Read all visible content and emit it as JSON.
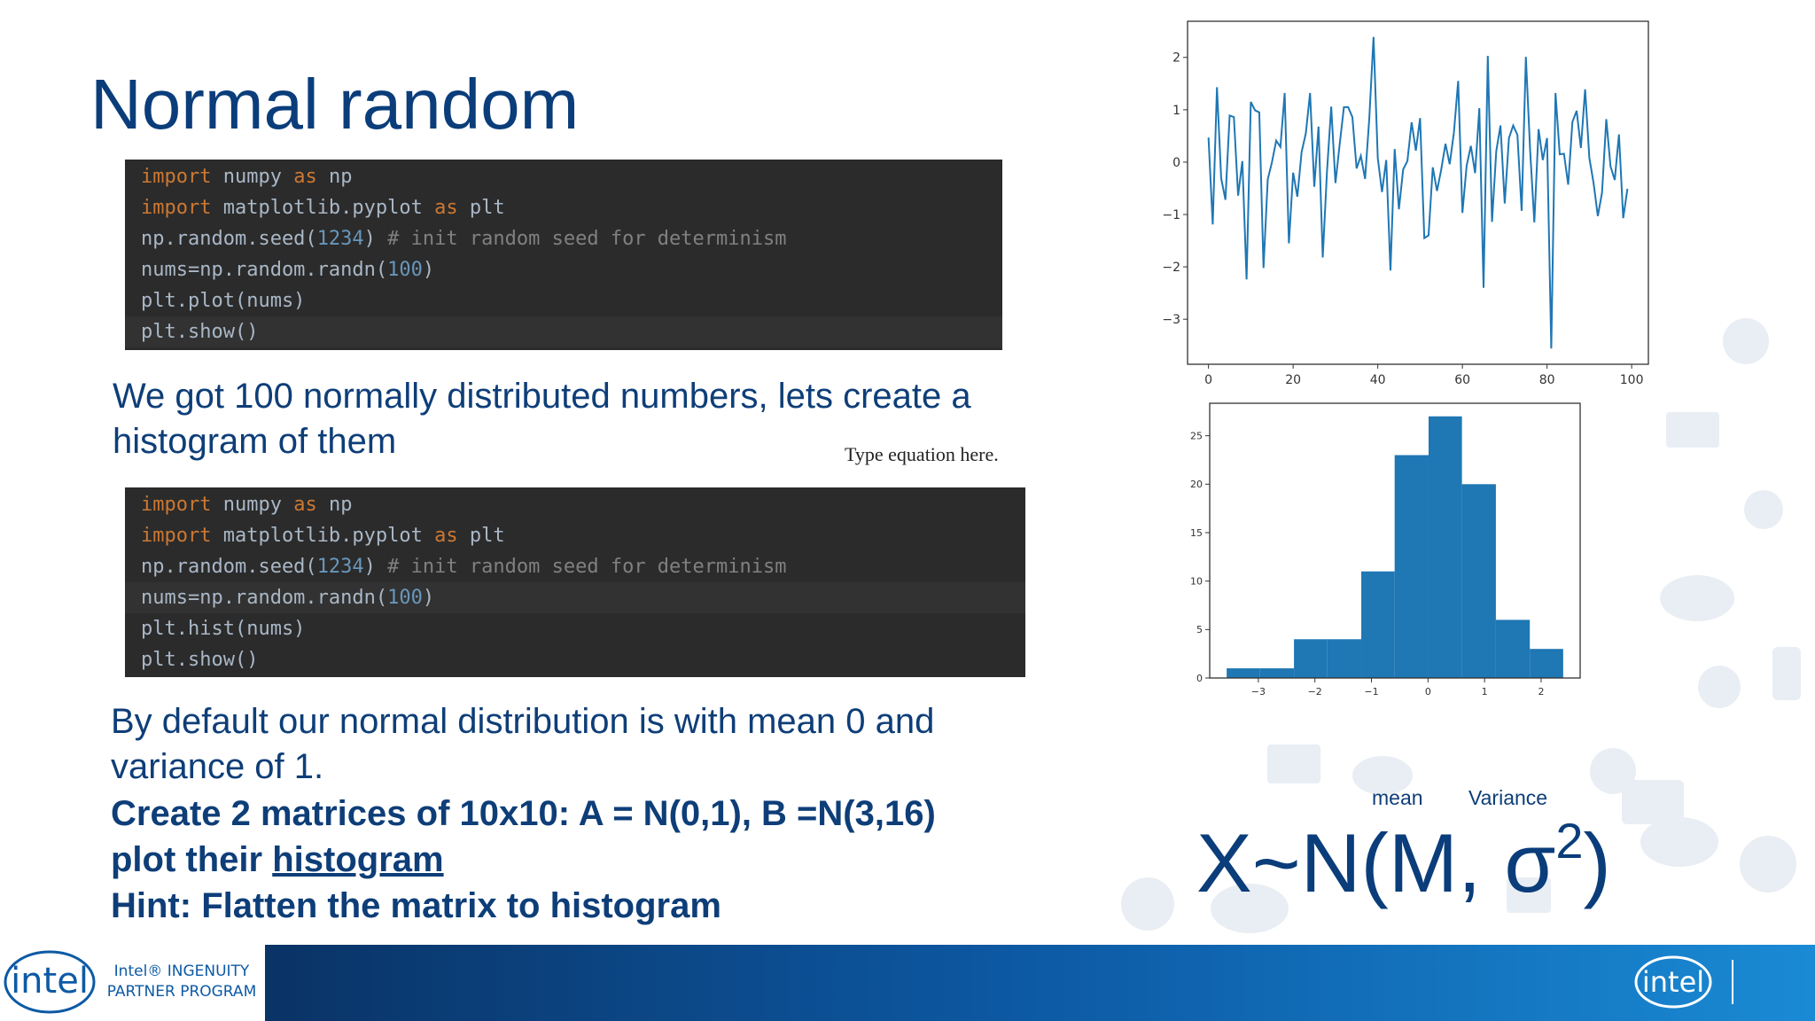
{
  "slide": {
    "title": "Normal random",
    "code1": [
      "import numpy as np",
      "import matplotlib.pyplot as plt",
      "np.random.seed(1234) # init random seed for determinism",
      "nums=np.random.randn(100)",
      "plt.plot(nums)",
      "plt.show()"
    ],
    "para1": [
      "We got 100 normally distributed numbers, lets create a",
      "histogram of them"
    ],
    "equation_placeholder": "Type equation here.",
    "code2": [
      "import numpy as np",
      "import matplotlib.pyplot as plt",
      "np.random.seed(1234) # init random seed for determinism",
      "nums=np.random.randn(100)",
      "plt.hist(nums)",
      "plt.show()"
    ],
    "para2": [
      "By default our normal distribution is with mean 0 and",
      "variance of 1."
    ],
    "task": {
      "line1": "Create 2 matrices of 10x10: A = N(0,1), B =N(3,16)",
      "line2_prefix": "plot their ",
      "line2_link": "histogram",
      "line3": "Hint: Flatten the matrix to histogram"
    },
    "formula": {
      "mean_label": "mean",
      "variance_label": "Variance",
      "main": "X~N(M, σ",
      "exponent": "2",
      "close": ")"
    },
    "footer": {
      "logo_left": "intel",
      "program_line1": "Intel® INGENUITY",
      "program_line2": "PARTNER PROGRAM",
      "logo_right": "intel"
    }
  },
  "chart_data": [
    {
      "type": "line",
      "color": "#1f77b4",
      "x": [
        0,
        1,
        2,
        3,
        4,
        5,
        6,
        7,
        8,
        9,
        10,
        11,
        12,
        13,
        14,
        15,
        16,
        17,
        18,
        19,
        20,
        21,
        22,
        23,
        24,
        25,
        26,
        27,
        28,
        29,
        30,
        31,
        32,
        33,
        34,
        35,
        36,
        37,
        38,
        39,
        40,
        41,
        42,
        43,
        44,
        45,
        46,
        47,
        48,
        49,
        50,
        51,
        52,
        53,
        54,
        55,
        56,
        57,
        58,
        59,
        60,
        61,
        62,
        63,
        64,
        65,
        66,
        67,
        68,
        69,
        70,
        71,
        72,
        73,
        74,
        75,
        76,
        77,
        78,
        79,
        80,
        81,
        82,
        83,
        84,
        85,
        86,
        87,
        88,
        89,
        90,
        91,
        92,
        93,
        94,
        95,
        96,
        97,
        98,
        99
      ],
      "values": [
        0.47,
        -1.19,
        1.43,
        -0.31,
        -0.72,
        0.89,
        0.86,
        -0.64,
        0.02,
        -2.24,
        1.15,
        0.99,
        0.95,
        -2.02,
        -0.33,
        0.0,
        0.41,
        0.29,
        1.32,
        -1.55,
        -0.2,
        -0.66,
        0.19,
        0.55,
        1.32,
        -0.47,
        0.68,
        -1.82,
        -0.18,
        1.06,
        -0.4,
        0.34,
        1.05,
        1.05,
        0.86,
        -0.12,
        0.12,
        -0.32,
        0.84,
        2.39,
        0.08,
        -0.57,
        0.04,
        -2.07,
        0.25,
        -0.9,
        -0.14,
        0.02,
        0.76,
        0.22,
        0.84,
        -1.45,
        -1.4,
        -0.1,
        -0.55,
        -0.14,
        0.35,
        -0.04,
        0.57,
        1.55,
        -0.97,
        -0.07,
        0.31,
        -0.21,
        1.03,
        -2.4,
        2.03,
        -1.14,
        0.21,
        0.7,
        -0.79,
        0.46,
        0.7,
        0.52,
        -0.93,
        2.01,
        0.23,
        -1.15,
        0.63,
        0.04,
        0.46,
        -3.56,
        1.32,
        0.15,
        0.16,
        -0.43,
        0.77,
        0.98,
        0.27,
        1.39,
        0.08,
        -0.4,
        -1.03,
        -0.58,
        0.82,
        -0.08,
        -0.34,
        0.53,
        -1.07,
        -0.51
      ],
      "xlim": [
        -4.95,
        103.95
      ],
      "ylim": [
        -3.86,
        2.69
      ],
      "xticks": [
        0,
        20,
        40,
        60,
        80,
        100
      ],
      "yticks": [
        {
          "value": -3,
          "label": "−3"
        },
        {
          "value": -2,
          "label": "−2"
        },
        {
          "value": -1,
          "label": "−1"
        },
        0,
        1,
        2
      ]
    },
    {
      "type": "histogram",
      "color": "#1f77b4",
      "bins": [
        -3.56,
        -2.97,
        -2.37,
        -1.78,
        -1.18,
        -0.59,
        0.01,
        0.6,
        1.2,
        1.8,
        2.39
      ],
      "values": [
        1,
        1,
        4,
        4,
        11,
        23,
        27,
        20,
        6,
        3
      ],
      "xlim": [
        -3.86,
        2.69
      ],
      "ylim": [
        0,
        28.35
      ],
      "xticks": [
        {
          "value": -3,
          "label": "−3"
        },
        {
          "value": -2,
          "label": "−2"
        },
        {
          "value": -1,
          "label": "−1"
        },
        0,
        1,
        2
      ],
      "yticks": [
        0,
        5,
        10,
        15,
        20,
        25
      ]
    }
  ]
}
